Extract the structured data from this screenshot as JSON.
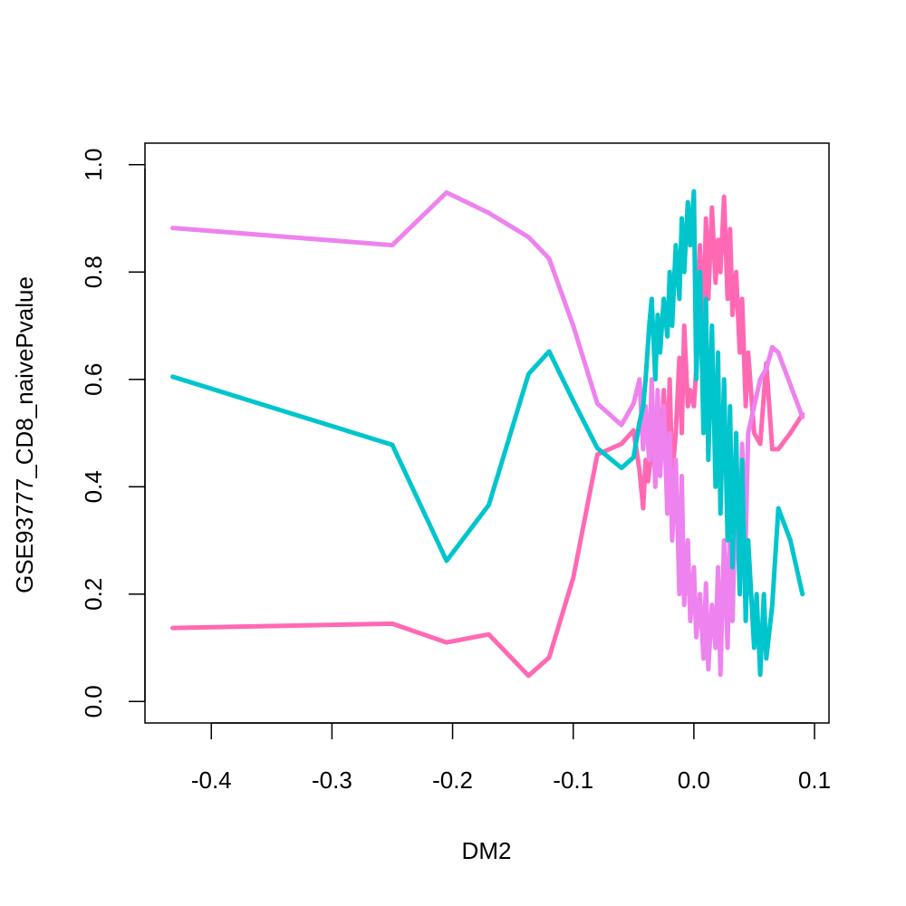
{
  "chart_data": {
    "type": "line",
    "title": "",
    "xlabel": "DM2",
    "ylabel": "GSE93777_CD8_naivePvalue",
    "xlim": [
      -0.455,
      0.112
    ],
    "ylim": [
      -0.04,
      1.04
    ],
    "x_ticks": [
      -0.4,
      -0.3,
      -0.2,
      -0.1,
      0.0,
      0.1
    ],
    "x_tick_labels": [
      "-0.4",
      "-0.3",
      "-0.2",
      "-0.1",
      "0.0",
      "0.1"
    ],
    "y_ticks": [
      0.0,
      0.2,
      0.4,
      0.6,
      0.8,
      1.0
    ],
    "y_tick_labels": [
      "0.0",
      "0.2",
      "0.4",
      "0.6",
      "0.8",
      "1.0"
    ],
    "grid": false,
    "legend": "none",
    "series": [
      {
        "color": "#FF69B4",
        "x": [
          -0.432,
          -0.25,
          -0.205,
          -0.17,
          -0.137,
          -0.12,
          -0.1,
          -0.08,
          -0.06,
          -0.05,
          -0.045,
          -0.042,
          -0.04,
          -0.038,
          -0.035,
          -0.032,
          -0.03,
          -0.028,
          -0.025,
          -0.022,
          -0.02,
          -0.018,
          -0.015,
          -0.012,
          -0.01,
          -0.008,
          -0.005,
          -0.003,
          0.0,
          0.002,
          0.005,
          0.008,
          0.01,
          0.012,
          0.015,
          0.018,
          0.02,
          0.022,
          0.025,
          0.028,
          0.03,
          0.032,
          0.035,
          0.038,
          0.04,
          0.043,
          0.045,
          0.05,
          0.055,
          0.06,
          0.065,
          0.07,
          0.08,
          0.09
        ],
        "y": [
          0.137,
          0.145,
          0.11,
          0.125,
          0.048,
          0.082,
          0.23,
          0.46,
          0.48,
          0.505,
          0.43,
          0.36,
          0.45,
          0.41,
          0.47,
          0.44,
          0.52,
          0.43,
          0.58,
          0.45,
          0.6,
          0.42,
          0.5,
          0.64,
          0.5,
          0.7,
          0.55,
          0.58,
          0.55,
          0.62,
          0.85,
          0.7,
          0.9,
          0.75,
          0.92,
          0.78,
          0.86,
          0.8,
          0.94,
          0.75,
          0.88,
          0.72,
          0.8,
          0.65,
          0.75,
          0.55,
          0.65,
          0.5,
          0.48,
          0.63,
          0.47,
          0.47,
          0.5,
          0.535
        ]
      },
      {
        "color": "#EE82EE",
        "x": [
          -0.432,
          -0.25,
          -0.205,
          -0.17,
          -0.137,
          -0.12,
          -0.1,
          -0.08,
          -0.06,
          -0.05,
          -0.045,
          -0.042,
          -0.04,
          -0.037,
          -0.035,
          -0.032,
          -0.03,
          -0.028,
          -0.025,
          -0.022,
          -0.02,
          -0.018,
          -0.015,
          -0.012,
          -0.01,
          -0.008,
          -0.005,
          -0.003,
          0.0,
          0.002,
          0.005,
          0.008,
          0.01,
          0.012,
          0.015,
          0.018,
          0.02,
          0.022,
          0.025,
          0.028,
          0.03,
          0.032,
          0.035,
          0.038,
          0.04,
          0.043,
          0.045,
          0.05,
          0.055,
          0.06,
          0.065,
          0.07,
          0.08,
          0.09
        ],
        "y": [
          0.882,
          0.85,
          0.948,
          0.91,
          0.865,
          0.825,
          0.7,
          0.555,
          0.515,
          0.555,
          0.6,
          0.47,
          0.55,
          0.45,
          0.6,
          0.4,
          0.58,
          0.42,
          0.55,
          0.35,
          0.5,
          0.3,
          0.45,
          0.2,
          0.42,
          0.18,
          0.3,
          0.15,
          0.25,
          0.12,
          0.2,
          0.08,
          0.22,
          0.06,
          0.18,
          0.1,
          0.25,
          0.05,
          0.3,
          0.1,
          0.35,
          0.15,
          0.42,
          0.2,
          0.48,
          0.3,
          0.5,
          0.55,
          0.6,
          0.62,
          0.66,
          0.65,
          0.59,
          0.53
        ]
      },
      {
        "color": "#00C5CD",
        "x": [
          -0.432,
          -0.25,
          -0.205,
          -0.17,
          -0.137,
          -0.12,
          -0.1,
          -0.08,
          -0.06,
          -0.05,
          -0.045,
          -0.042,
          -0.04,
          -0.037,
          -0.035,
          -0.032,
          -0.03,
          -0.028,
          -0.025,
          -0.022,
          -0.02,
          -0.018,
          -0.015,
          -0.012,
          -0.01,
          -0.008,
          -0.005,
          -0.003,
          0.0,
          0.002,
          0.005,
          0.008,
          0.01,
          0.012,
          0.015,
          0.018,
          0.02,
          0.022,
          0.025,
          0.028,
          0.03,
          0.032,
          0.035,
          0.038,
          0.04,
          0.043,
          0.045,
          0.05,
          0.052,
          0.055,
          0.058,
          0.06,
          0.065,
          0.07,
          0.08,
          0.09
        ],
        "y": [
          0.605,
          0.478,
          0.262,
          0.366,
          0.61,
          0.652,
          0.56,
          0.472,
          0.435,
          0.455,
          0.52,
          0.55,
          0.6,
          0.7,
          0.75,
          0.6,
          0.72,
          0.65,
          0.75,
          0.68,
          0.8,
          0.7,
          0.85,
          0.75,
          0.9,
          0.8,
          0.93,
          0.85,
          0.95,
          0.6,
          0.8,
          0.5,
          0.75,
          0.45,
          0.7,
          0.4,
          0.65,
          0.35,
          0.6,
          0.3,
          0.55,
          0.25,
          0.5,
          0.2,
          0.45,
          0.15,
          0.3,
          0.1,
          0.2,
          0.05,
          0.2,
          0.08,
          0.18,
          0.36,
          0.3,
          0.2
        ]
      }
    ]
  }
}
